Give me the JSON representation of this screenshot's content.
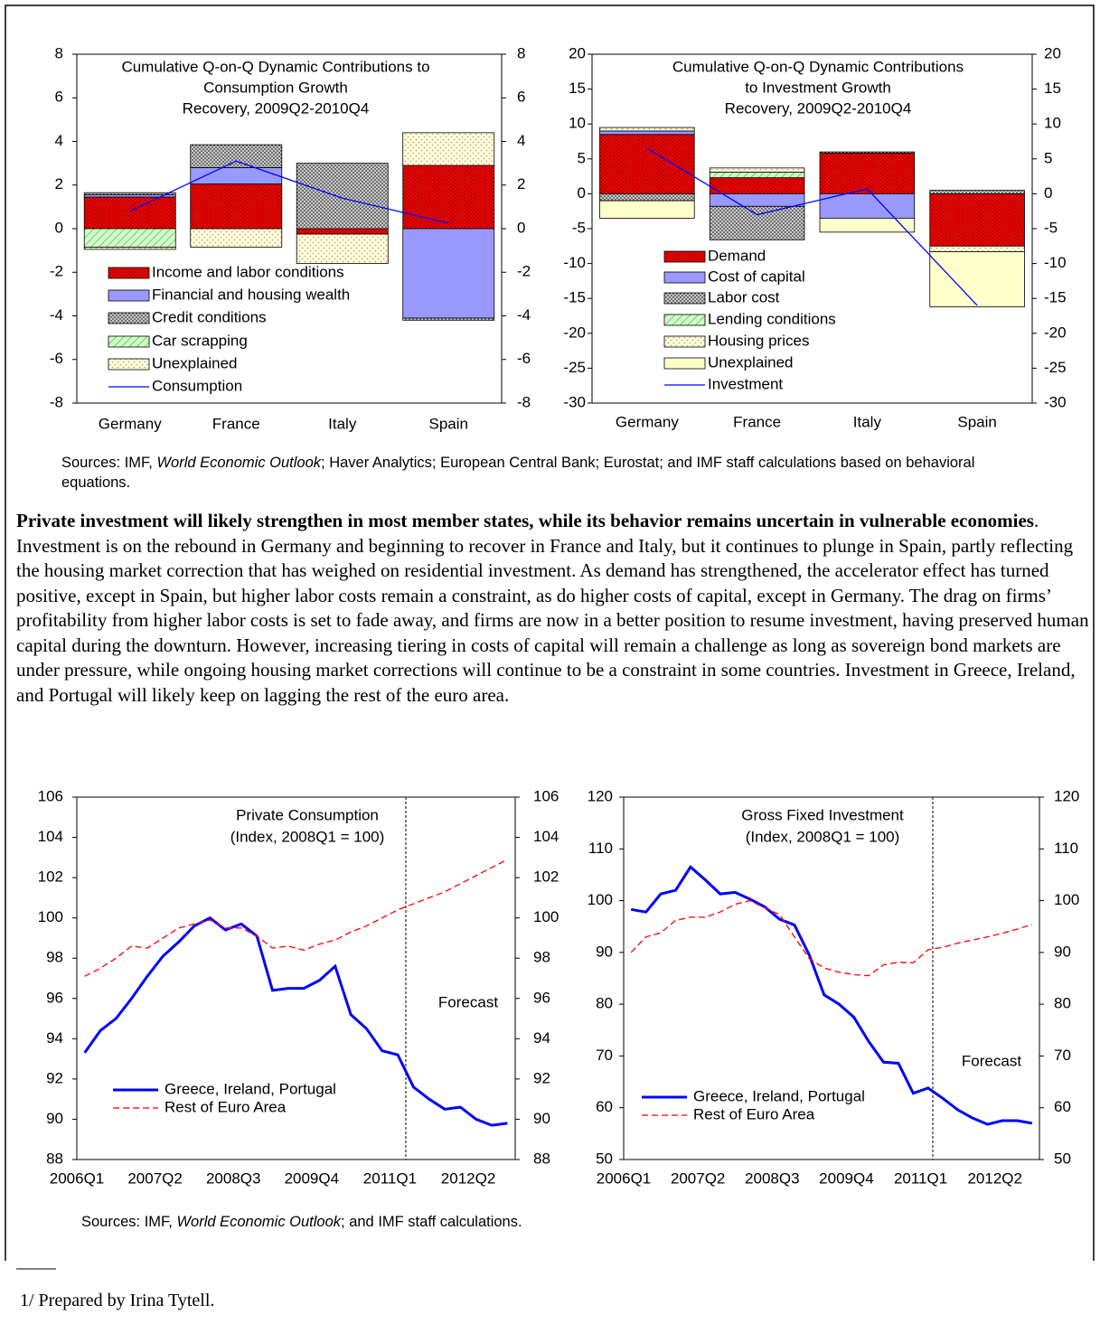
{
  "chart_data": [
    {
      "type": "bar",
      "stacked": true,
      "title": [
        "Cumulative Q-on-Q Dynamic Contributions to",
        "Consumption Growth",
        "Recovery, 2009Q2-2010Q4"
      ],
      "categories": [
        "Germany",
        "France",
        "Italy",
        "Spain"
      ],
      "ylim": [
        -8,
        8
      ],
      "yticks": [
        -8,
        -6,
        -4,
        -2,
        0,
        2,
        4,
        6,
        8
      ],
      "y2lim": [
        -8,
        8
      ],
      "y2ticks": [
        -8,
        -6,
        -4,
        -2,
        0,
        2,
        4,
        6,
        8
      ],
      "legend": "lower-left",
      "series": [
        {
          "name": "Income and labor conditions",
          "color": "#ff0000",
          "fill_pattern": "dots",
          "pattern_color": "#7a0000",
          "values": [
            1.45,
            2.05,
            -0.25,
            2.9
          ]
        },
        {
          "name": "Financial and housing wealth",
          "color": "#9999ff",
          "fill_pattern": "solid",
          "values": [
            0.1,
            0.75,
            0,
            -4.1
          ]
        },
        {
          "name": "Credit conditions",
          "color": "#c8c8c8",
          "fill_pattern": "dots",
          "pattern_color": "#333333",
          "values": [
            0.1,
            1.05,
            3.0,
            -0.1
          ]
        },
        {
          "name": "Car scrapping",
          "color": "#ccffcc",
          "fill_pattern": "hatch",
          "pattern_color": "#77aa44",
          "values": [
            -0.85,
            0,
            0,
            0
          ]
        },
        {
          "name": "Unexplained",
          "color": "#fffadc",
          "fill_pattern": "sparse-dots",
          "pattern_color": "#b8a060",
          "values": [
            -0.1,
            -0.85,
            -1.35,
            1.5
          ]
        },
        {
          "name": "Consumption",
          "type": "line",
          "color": "#0000ff",
          "values": [
            0.8,
            3.1,
            1.4,
            0.25
          ]
        }
      ]
    },
    {
      "type": "bar",
      "stacked": true,
      "title": [
        "Cumulative Q-on-Q Dynamic Contributions",
        "to Investment Growth",
        "Recovery, 2009Q2-2010Q4"
      ],
      "categories": [
        "Germany",
        "France",
        "Italy",
        "Spain"
      ],
      "ylim": [
        -30,
        20
      ],
      "yticks": [
        -30,
        -25,
        -20,
        -15,
        -10,
        -5,
        0,
        5,
        10,
        15,
        20
      ],
      "y2lim": [
        -30,
        20
      ],
      "y2ticks": [
        -30,
        -25,
        -20,
        -15,
        -10,
        -5,
        0,
        5,
        10,
        15,
        20
      ],
      "legend": "lower-left",
      "series": [
        {
          "name": "Demand",
          "color": "#ff0000",
          "fill_pattern": "dots",
          "pattern_color": "#7a0000",
          "values": [
            8.5,
            2.3,
            5.8,
            -7.5
          ]
        },
        {
          "name": "Cost of capital",
          "color": "#9999ff",
          "fill_pattern": "solid",
          "values": [
            0.5,
            -1.8,
            -3.5,
            0
          ]
        },
        {
          "name": "Labor cost",
          "color": "#c8c8c8",
          "fill_pattern": "dots",
          "pattern_color": "#333333",
          "values": [
            -1.0,
            -4.8,
            0.2,
            0.5
          ]
        },
        {
          "name": "Lending conditions",
          "color": "#ccffcc",
          "fill_pattern": "hatch",
          "pattern_color": "#77aa44",
          "values": [
            0,
            0.8,
            0,
            0
          ]
        },
        {
          "name": "Housing prices",
          "color": "#fffadc",
          "fill_pattern": "sparse-dots",
          "pattern_color": "#b8a060",
          "values": [
            0.5,
            0.6,
            0,
            -0.8
          ]
        },
        {
          "name": "Unexplained",
          "color": "#ffffcc",
          "fill_pattern": "solid",
          "values": [
            -2.5,
            0,
            -2.0,
            -7.9
          ]
        },
        {
          "name": "Investment",
          "type": "line",
          "color": "#0000ff",
          "values": [
            6.5,
            -3.0,
            0.7,
            -16.0
          ]
        }
      ]
    },
    {
      "type": "line",
      "title": [
        "Private Consumption",
        "(Index, 2008Q1 = 100)"
      ],
      "annotation": "Forecast",
      "categories": [
        "2006Q1",
        null,
        null,
        null,
        null,
        "2007Q2",
        null,
        null,
        null,
        null,
        "2008Q3",
        null,
        null,
        null,
        null,
        "2009Q4",
        null,
        null,
        null,
        null,
        "2011Q1",
        null,
        null,
        null,
        null,
        "2012Q2",
        null,
        null
      ],
      "ylim": [
        88,
        106
      ],
      "yticks": [
        88,
        90,
        92,
        94,
        96,
        98,
        100,
        102,
        104,
        106
      ],
      "y2lim": [
        88,
        106
      ],
      "y2ticks": [
        88,
        90,
        92,
        94,
        96,
        98,
        100,
        102,
        104,
        106
      ],
      "legend": "lower-left",
      "series": [
        {
          "name": "Greece, Ireland, Portugal",
          "color": "#0000ff",
          "line_style": "solid",
          "values": [
            93.3,
            94.4,
            95.0,
            96.0,
            97.1,
            98.1,
            98.8,
            99.6,
            100.0,
            99.4,
            99.7,
            99.1,
            96.4,
            96.5,
            96.5,
            96.9,
            97.6,
            95.2,
            94.5,
            93.4,
            93.2,
            91.6,
            91.0,
            90.5,
            90.6,
            90.0,
            89.7,
            89.8
          ]
        },
        {
          "name": "Rest of Euro Area",
          "color": "#ff0000",
          "line_style": "dashed",
          "values": [
            97.1,
            97.5,
            98.0,
            98.6,
            98.5,
            99.0,
            99.5,
            99.7,
            99.9,
            99.5,
            99.5,
            99.1,
            98.5,
            98.6,
            98.4,
            98.7,
            98.9,
            99.3,
            99.6,
            100.0,
            100.4,
            100.7,
            101.0,
            101.3,
            101.7,
            102.1,
            102.5,
            102.9
          ]
        }
      ]
    },
    {
      "type": "line",
      "title": [
        "Gross Fixed Investment",
        "(Index, 2008Q1 = 100)"
      ],
      "annotation": "Forecast",
      "categories": [
        "2006Q1",
        null,
        null,
        null,
        null,
        "2007Q2",
        null,
        null,
        null,
        null,
        "2008Q3",
        null,
        null,
        null,
        null,
        "2009Q4",
        null,
        null,
        null,
        null,
        "2011Q1",
        null,
        null,
        null,
        null,
        "2012Q2",
        null,
        null
      ],
      "ylim": [
        50,
        120
      ],
      "yticks": [
        50,
        60,
        70,
        80,
        90,
        100,
        110,
        120
      ],
      "y2lim": [
        50,
        120
      ],
      "y2ticks": [
        50,
        60,
        70,
        80,
        90,
        100,
        110,
        120
      ],
      "legend": "lower-left",
      "series": [
        {
          "name": "Greece, Ireland, Portugal",
          "color": "#0000ff",
          "line_style": "solid",
          "values": [
            98.3,
            97.8,
            101.3,
            102.0,
            106.5,
            104.0,
            101.3,
            101.6,
            100.3,
            98.8,
            96.4,
            95.3,
            89.5,
            81.8,
            80.0,
            77.5,
            72.8,
            68.8,
            68.6,
            62.8,
            63.8,
            61.8,
            59.6,
            58.0,
            56.8,
            57.5,
            57.5,
            57.0
          ]
        },
        {
          "name": "Rest of Euro Area",
          "color": "#ff0000",
          "line_style": "dashed",
          "values": [
            90.0,
            93.0,
            93.8,
            96.2,
            96.8,
            96.8,
            97.8,
            99.3,
            100.0,
            98.6,
            97.3,
            93.0,
            88.8,
            87.0,
            86.2,
            85.7,
            85.5,
            87.6,
            88.1,
            88.0,
            90.5,
            91.0,
            91.8,
            92.4,
            93.0,
            93.7,
            94.5,
            95.4
          ]
        }
      ]
    }
  ],
  "sources_1": {
    "prefix": "Sources: IMF, ",
    "italic": "World Economic Outlook",
    "suffix": "; Haver Analytics; European Central Bank; Eurostat; and IMF staff calculations based on behavioral equations."
  },
  "paragraph": {
    "lead": "Private investment will likely strengthen in most member states, while its behavior remains uncertain in vulnerable economies",
    "body": ". Investment is on the rebound in Germany and beginning to recover in France and Italy, but it continues to plunge in Spain, partly reflecting the housing market correction that has weighed on residential investment. As demand has strengthened, the accelerator effect has turned positive, except in Spain, but higher labor costs remain a constraint, as do higher costs of capital, except in Germany. The drag on firms’ profitability from higher labor costs is set to fade away, and firms are now in a better position to resume investment, having preserved human capital during the downturn. However, increasing tiering in costs of capital will remain a challenge as long as sovereign bond markets are under pressure, while ongoing housing market corrections will continue to be a constraint in some countries. Investment in Greece, Ireland, and Portugal will likely keep on lagging the rest of the euro area."
  },
  "sources_2": {
    "prefix": "Sources: IMF, ",
    "italic": "World Economic Outlook",
    "suffix": "; and IMF staff calculations."
  },
  "footnote": "1/ Prepared by Irina Tytell."
}
